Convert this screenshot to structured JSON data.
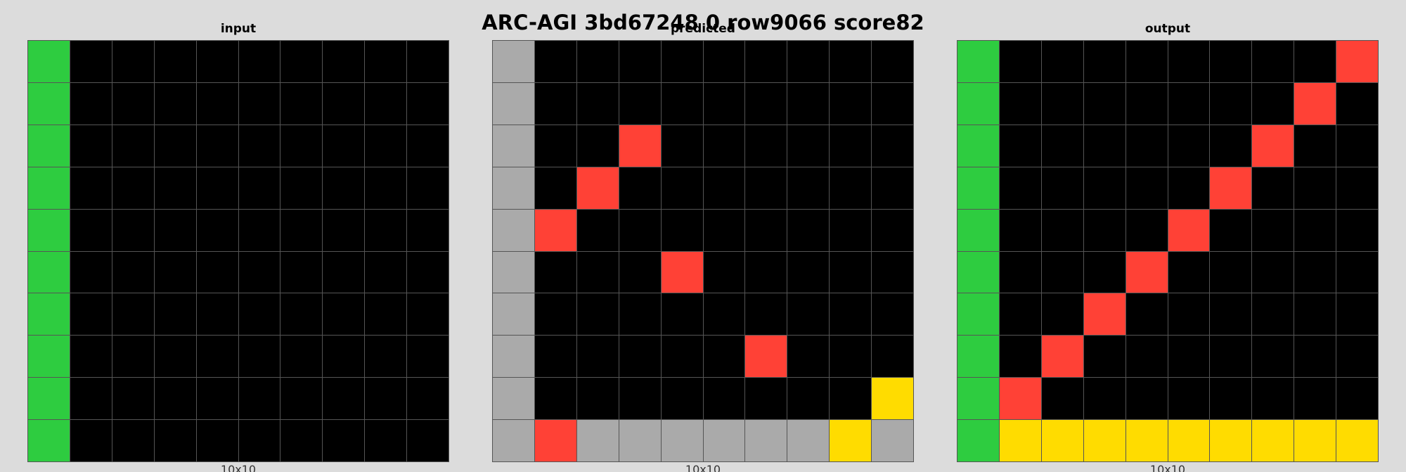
{
  "title": "ARC-AGI 3bd67248 0 row9066 score82",
  "palette": {
    "0": "#000000",
    "2": "#ff4136",
    "3": "#2ecc40",
    "4": "#ffdc00",
    "5": "#aaaaaa"
  },
  "panels": [
    {
      "key": "input",
      "label": "input",
      "size_label": "10x10",
      "grid": [
        [
          3,
          0,
          0,
          0,
          0,
          0,
          0,
          0,
          0,
          0
        ],
        [
          3,
          0,
          0,
          0,
          0,
          0,
          0,
          0,
          0,
          0
        ],
        [
          3,
          0,
          0,
          0,
          0,
          0,
          0,
          0,
          0,
          0
        ],
        [
          3,
          0,
          0,
          0,
          0,
          0,
          0,
          0,
          0,
          0
        ],
        [
          3,
          0,
          0,
          0,
          0,
          0,
          0,
          0,
          0,
          0
        ],
        [
          3,
          0,
          0,
          0,
          0,
          0,
          0,
          0,
          0,
          0
        ],
        [
          3,
          0,
          0,
          0,
          0,
          0,
          0,
          0,
          0,
          0
        ],
        [
          3,
          0,
          0,
          0,
          0,
          0,
          0,
          0,
          0,
          0
        ],
        [
          3,
          0,
          0,
          0,
          0,
          0,
          0,
          0,
          0,
          0
        ],
        [
          3,
          0,
          0,
          0,
          0,
          0,
          0,
          0,
          0,
          0
        ]
      ]
    },
    {
      "key": "predicted",
      "label": "predicted",
      "size_label": "10x10",
      "grid": [
        [
          5,
          0,
          0,
          0,
          0,
          0,
          0,
          0,
          0,
          0
        ],
        [
          5,
          0,
          0,
          0,
          0,
          0,
          0,
          0,
          0,
          0
        ],
        [
          5,
          0,
          0,
          2,
          0,
          0,
          0,
          0,
          0,
          0
        ],
        [
          5,
          0,
          2,
          0,
          0,
          0,
          0,
          0,
          0,
          0
        ],
        [
          5,
          2,
          0,
          0,
          0,
          0,
          0,
          0,
          0,
          0
        ],
        [
          5,
          0,
          0,
          0,
          2,
          0,
          0,
          0,
          0,
          0
        ],
        [
          5,
          0,
          0,
          0,
          0,
          0,
          0,
          0,
          0,
          0
        ],
        [
          5,
          0,
          0,
          0,
          0,
          0,
          2,
          0,
          0,
          0
        ],
        [
          5,
          0,
          0,
          0,
          0,
          0,
          0,
          0,
          0,
          4
        ],
        [
          5,
          2,
          5,
          5,
          5,
          5,
          5,
          5,
          4,
          5
        ]
      ]
    },
    {
      "key": "output",
      "label": "output",
      "size_label": "10x10",
      "grid": [
        [
          3,
          0,
          0,
          0,
          0,
          0,
          0,
          0,
          0,
          2
        ],
        [
          3,
          0,
          0,
          0,
          0,
          0,
          0,
          0,
          2,
          0
        ],
        [
          3,
          0,
          0,
          0,
          0,
          0,
          0,
          2,
          0,
          0
        ],
        [
          3,
          0,
          0,
          0,
          0,
          0,
          2,
          0,
          0,
          0
        ],
        [
          3,
          0,
          0,
          0,
          0,
          2,
          0,
          0,
          0,
          0
        ],
        [
          3,
          0,
          0,
          0,
          2,
          0,
          0,
          0,
          0,
          0
        ],
        [
          3,
          0,
          0,
          2,
          0,
          0,
          0,
          0,
          0,
          0
        ],
        [
          3,
          0,
          2,
          0,
          0,
          0,
          0,
          0,
          0,
          0
        ],
        [
          3,
          2,
          0,
          0,
          0,
          0,
          0,
          0,
          0,
          0
        ],
        [
          3,
          4,
          4,
          4,
          4,
          4,
          4,
          4,
          4,
          4
        ]
      ]
    }
  ]
}
